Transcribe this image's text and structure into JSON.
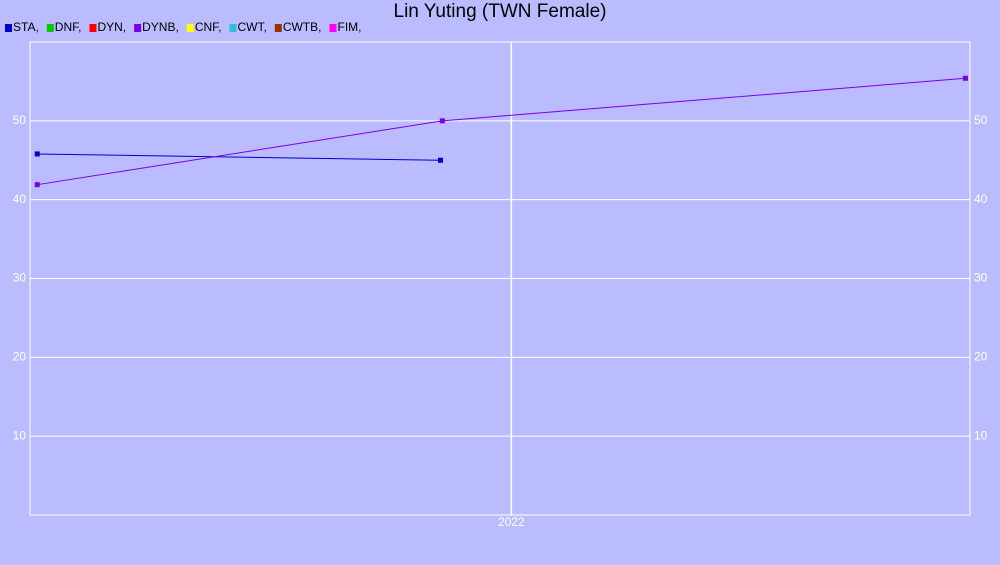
{
  "chart_data": {
    "type": "line",
    "title": "Lin Yuting (TWN Female)",
    "xlim": [
      2021.47,
      2022.505
    ],
    "xticks": [
      2022
    ],
    "ylim": [
      0,
      60
    ],
    "yticks": [
      10,
      20,
      30,
      40,
      50
    ],
    "grid": true,
    "right_axis_labels": true,
    "legend": "top-left",
    "series": [
      {
        "name": "STA,",
        "color": "#0000cc",
        "x": [
          2021.478,
          2021.922
        ],
        "values": [
          45.8,
          45.0
        ]
      },
      {
        "name": "DNF,",
        "color": "#00cc00",
        "x": [],
        "values": []
      },
      {
        "name": "DYN,",
        "color": "#ff0000",
        "x": [],
        "values": []
      },
      {
        "name": "DYNB,",
        "color": "#7a00e6",
        "x": [
          2021.478,
          2021.924,
          2022.5
        ],
        "values": [
          41.9,
          50.0,
          55.4
        ]
      },
      {
        "name": "CNF,",
        "color": "#ffff00",
        "x": [],
        "values": []
      },
      {
        "name": "CWT,",
        "color": "#33bbdd",
        "x": [],
        "values": []
      },
      {
        "name": "CWTB,",
        "color": "#993300",
        "x": [],
        "values": []
      },
      {
        "name": "FIM,",
        "color": "#ff00ff",
        "x": [],
        "values": []
      }
    ]
  }
}
